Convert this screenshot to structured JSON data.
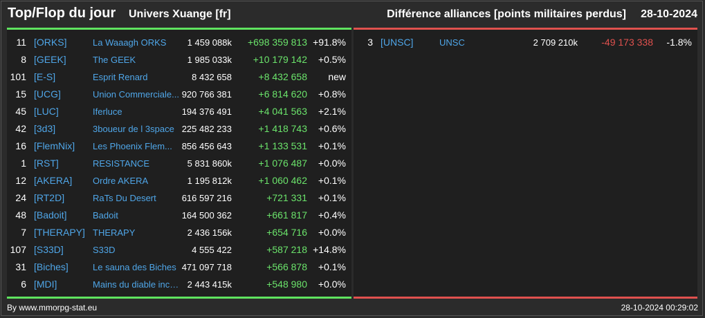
{
  "header": {
    "title": "Top/Flop du jour",
    "universe": "Univers Xuange [fr]",
    "diff_title": "Différence alliances [points militaires perdus]",
    "date": "28-10-2024"
  },
  "colors": {
    "positive": "#6be46b",
    "negative": "#e0514e",
    "link": "#4fa6e8",
    "top_bar": "#5fe35f",
    "flop_bar": "#e0514e"
  },
  "top": [
    {
      "rank": "11",
      "tag": "[ORKS]",
      "name": "La Waaagh ORKS",
      "points": "1 459 088k",
      "diff": "+698 359 813",
      "pct": "+91.8%"
    },
    {
      "rank": "8",
      "tag": "[GEEK]",
      "name": "The GEEK",
      "points": "1 985 033k",
      "diff": "+10 179 142",
      "pct": "+0.5%"
    },
    {
      "rank": "101",
      "tag": "[E-S]",
      "name": "Esprit Renard",
      "points": "8 432 658",
      "diff": "+8 432 658",
      "pct": "new"
    },
    {
      "rank": "15",
      "tag": "[UCG]",
      "name": "Union Commerciale...",
      "points": "920 766 381",
      "diff": "+6 814 620",
      "pct": "+0.8%"
    },
    {
      "rank": "45",
      "tag": "[LUC]",
      "name": "Iferluce",
      "points": "194 376 491",
      "diff": "+4 041 563",
      "pct": "+2.1%"
    },
    {
      "rank": "42",
      "tag": "[3d3]",
      "name": "3boueur de l 3space",
      "points": "225 482 233",
      "diff": "+1 418 743",
      "pct": "+0.6%"
    },
    {
      "rank": "16",
      "tag": "[FlemNix]",
      "name": "Les Phoenix Flem...",
      "points": "856 456 643",
      "diff": "+1 133 531",
      "pct": "+0.1%"
    },
    {
      "rank": "1",
      "tag": "[RST]",
      "name": "RESISTANCE",
      "points": "5 831 860k",
      "diff": "+1 076 487",
      "pct": "+0.0%"
    },
    {
      "rank": "12",
      "tag": "[AKERA]",
      "name": "Ordre AKERA",
      "points": "1 195 812k",
      "diff": "+1 060 462",
      "pct": "+0.1%"
    },
    {
      "rank": "24",
      "tag": "[RT2D]",
      "name": "RaTs Du Desert",
      "points": "616 597 216",
      "diff": "+721 331",
      "pct": "+0.1%"
    },
    {
      "rank": "48",
      "tag": "[Badoit]",
      "name": "Badoit",
      "points": "164 500 362",
      "diff": "+661 817",
      "pct": "+0.4%"
    },
    {
      "rank": "7",
      "tag": "[THERAPY]",
      "name": "THERAPY",
      "points": "2 436 156k",
      "diff": "+654 716",
      "pct": "+0.0%"
    },
    {
      "rank": "107",
      "tag": "[S33D]",
      "name": "S33D",
      "points": "4 555 422",
      "diff": "+587 218",
      "pct": "+14.8%"
    },
    {
      "rank": "31",
      "tag": "[Biches]",
      "name": "Le sauna des Biches",
      "points": "471 097 718",
      "diff": "+566 878",
      "pct": "+0.1%"
    },
    {
      "rank": "6",
      "tag": "[MDI]",
      "name": "Mains du diable inco...",
      "points": "2 443 415k",
      "diff": "+548 980",
      "pct": "+0.0%"
    }
  ],
  "flop": [
    {
      "rank": "3",
      "tag": "[UNSC]",
      "name": "UNSC",
      "points": "2 709 210k",
      "diff": "-49 173 338",
      "pct": "-1.8%"
    }
  ],
  "footer": {
    "credit": "By www.mmorpg-stat.eu",
    "timestamp": "28-10-2024 00:29:02"
  }
}
